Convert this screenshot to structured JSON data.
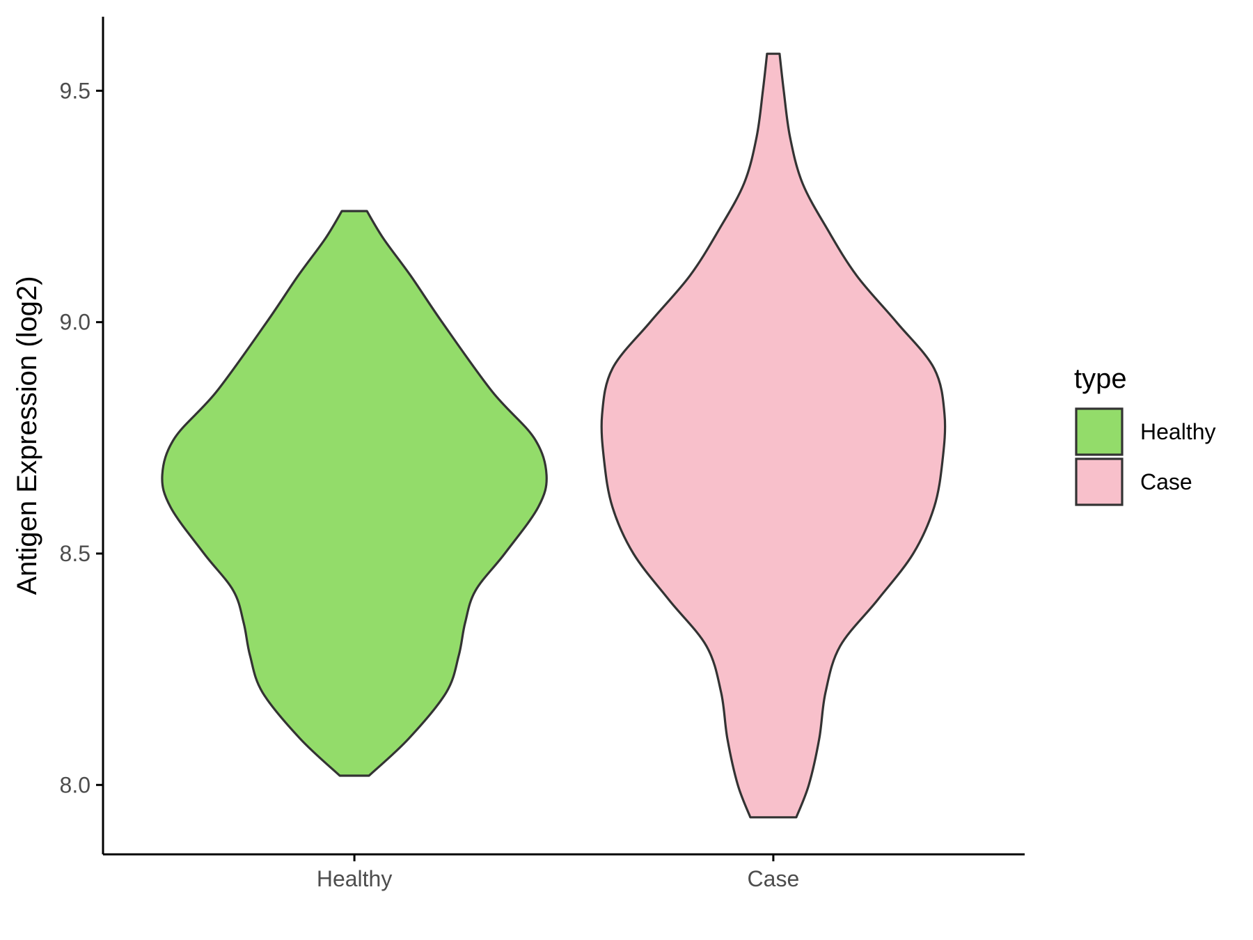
{
  "chart_data": {
    "type": "violin",
    "ylabel": "Antigen Expression (log2)",
    "xlabel": "",
    "ylim": [
      7.85,
      9.66
    ],
    "yticks": [
      8.0,
      8.5,
      9.0,
      9.5
    ],
    "ytick_labels": [
      "8.0",
      "8.5",
      "9.0",
      "9.5"
    ],
    "categories": [
      "Healthy",
      "Case"
    ],
    "legend": {
      "title": "type",
      "position": "right",
      "entries": [
        "Healthy",
        "Case"
      ]
    },
    "grid": false,
    "outline_color": "#333333",
    "series": [
      {
        "name": "Healthy",
        "color": "#93DC6A",
        "min": 8.02,
        "max": 9.24,
        "profile": [
          [
            8.02,
            0.07
          ],
          [
            8.1,
            0.26
          ],
          [
            8.2,
            0.44
          ],
          [
            8.28,
            0.5
          ],
          [
            8.35,
            0.53
          ],
          [
            8.42,
            0.58
          ],
          [
            8.5,
            0.72
          ],
          [
            8.6,
            0.88
          ],
          [
            8.67,
            0.92
          ],
          [
            8.75,
            0.86
          ],
          [
            8.85,
            0.66
          ],
          [
            9.0,
            0.42
          ],
          [
            9.1,
            0.27
          ],
          [
            9.18,
            0.14
          ],
          [
            9.24,
            0.06
          ]
        ]
      },
      {
        "name": "Case",
        "color": "#F8C0CB",
        "min": 7.93,
        "max": 9.58,
        "profile": [
          [
            7.93,
            0.11
          ],
          [
            8.0,
            0.17
          ],
          [
            8.1,
            0.22
          ],
          [
            8.2,
            0.25
          ],
          [
            8.3,
            0.32
          ],
          [
            8.4,
            0.5
          ],
          [
            8.5,
            0.67
          ],
          [
            8.6,
            0.77
          ],
          [
            8.7,
            0.81
          ],
          [
            8.8,
            0.82
          ],
          [
            8.9,
            0.77
          ],
          [
            9.0,
            0.59
          ],
          [
            9.1,
            0.4
          ],
          [
            9.2,
            0.26
          ],
          [
            9.3,
            0.14
          ],
          [
            9.4,
            0.08
          ],
          [
            9.5,
            0.05
          ],
          [
            9.58,
            0.03
          ]
        ]
      }
    ]
  }
}
